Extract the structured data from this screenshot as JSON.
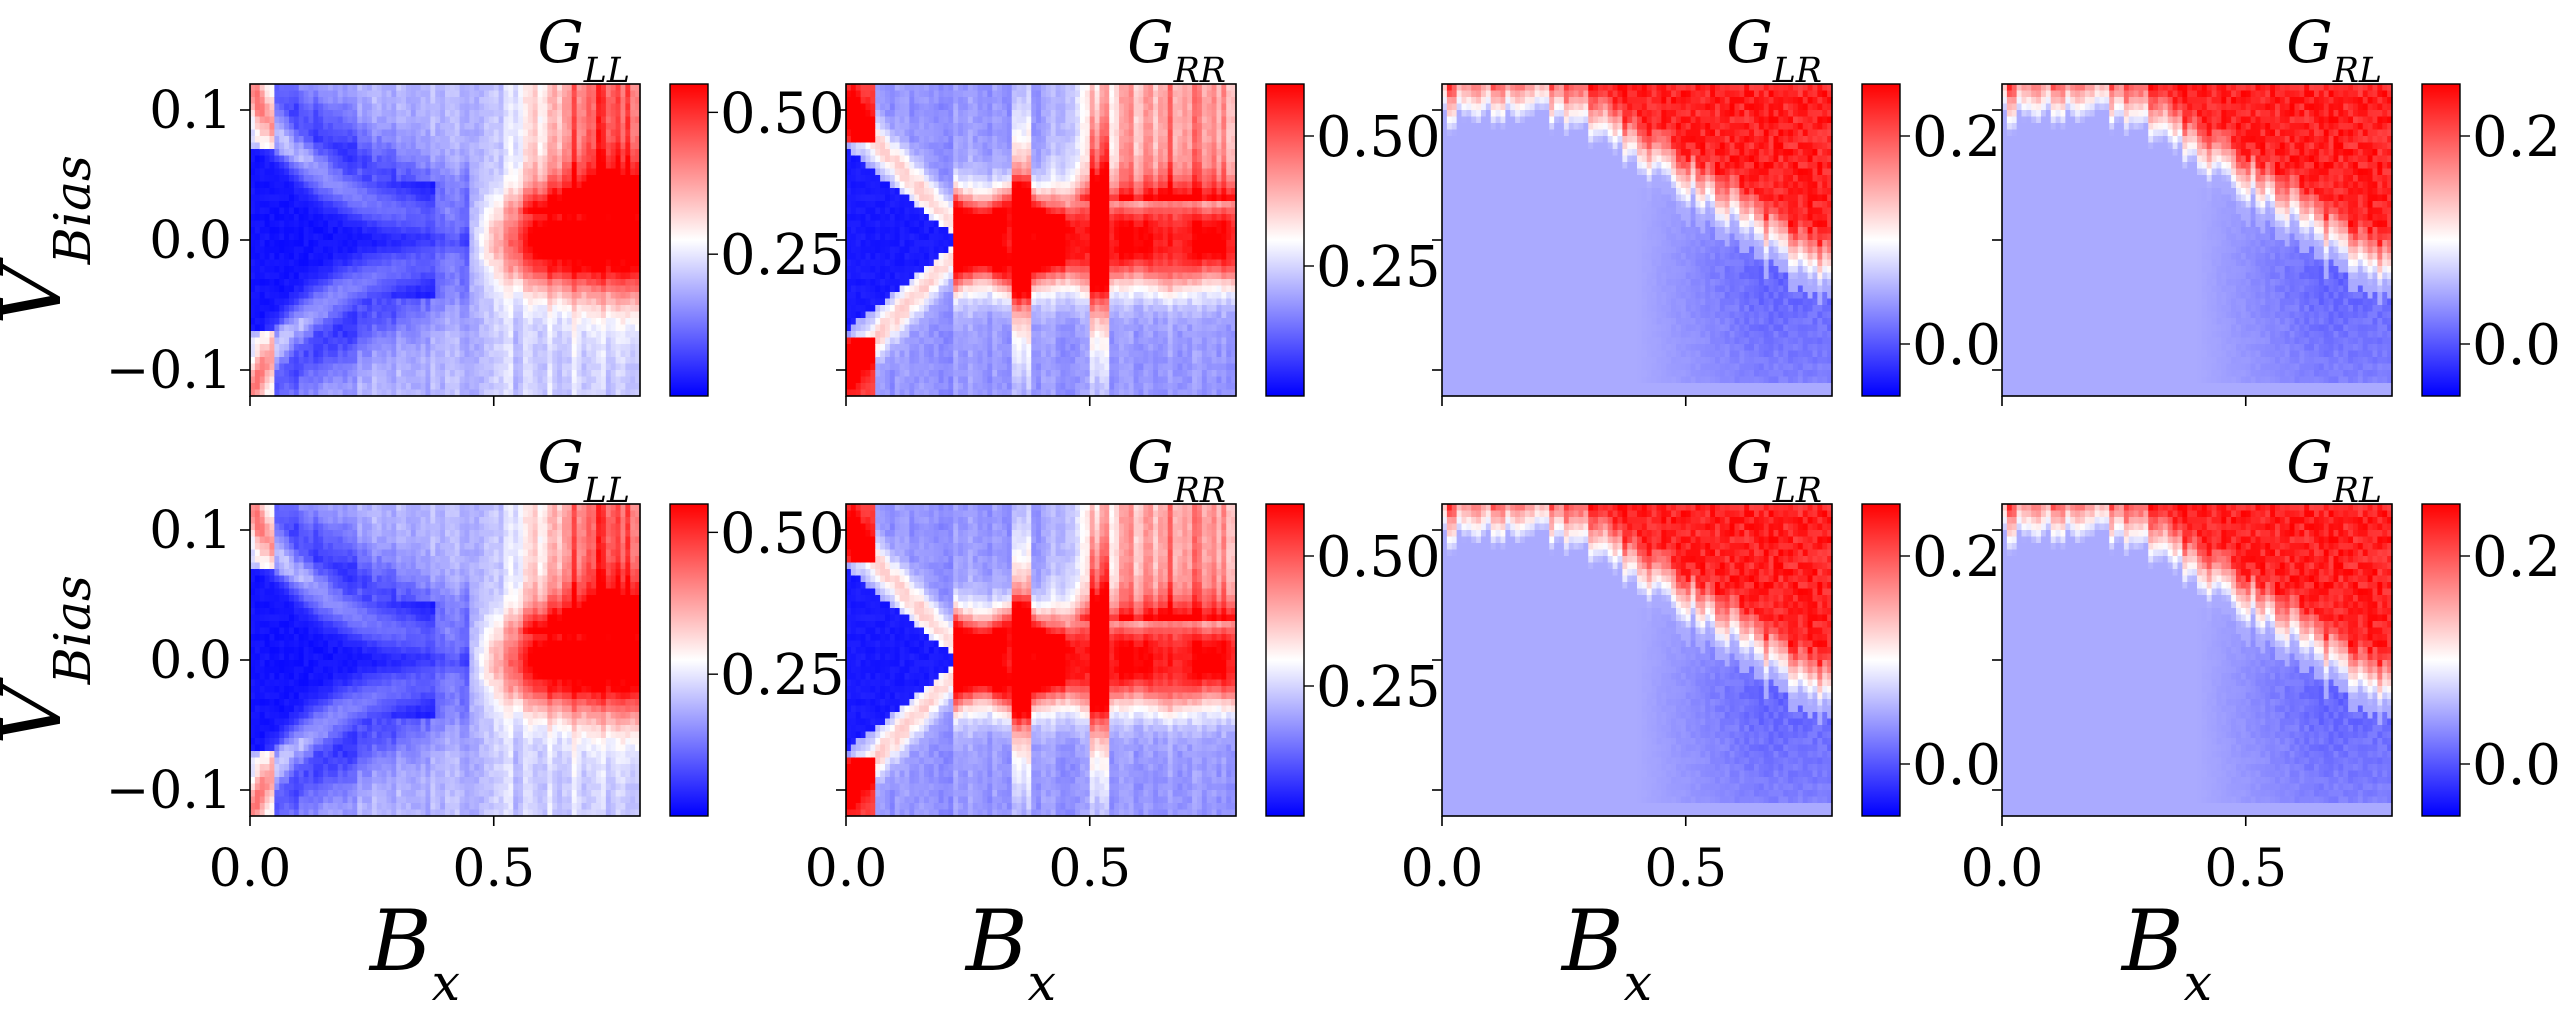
{
  "chart_data": {
    "type": "heatmap",
    "grid_layout": "2 rows x 4 columns",
    "colormap": "bwr",
    "xlabel_main": "B",
    "xlabel_sub": "x",
    "ylabel_main": "V",
    "ylabel_sub": "Bias",
    "x_range": [
      0.0,
      0.8
    ],
    "y_range": [
      -0.12,
      0.12
    ],
    "x_ticks": [
      "0.0",
      "0.5"
    ],
    "y_ticks": [
      "0.1",
      "0.0",
      "−0.1"
    ],
    "x_tick_values": [
      0.0,
      0.5
    ],
    "y_tick_values": [
      0.1,
      0.0,
      -0.1
    ],
    "panels": [
      {
        "row": 0,
        "col": 0,
        "title_main": "G",
        "title_sub": "LL",
        "pattern": "LL",
        "colorbar": {
          "min": 0.0,
          "max": 0.55,
          "ticks": [
            "0.50",
            "0.25"
          ],
          "tick_values": [
            0.5,
            0.25
          ]
        }
      },
      {
        "row": 0,
        "col": 1,
        "title_main": "G",
        "title_sub": "RR",
        "pattern": "RR",
        "colorbar": {
          "min": 0.0,
          "max": 0.6,
          "ticks": [
            "0.50",
            "0.25"
          ],
          "tick_values": [
            0.5,
            0.25
          ]
        }
      },
      {
        "row": 0,
        "col": 2,
        "title_main": "G",
        "title_sub": "LR",
        "pattern": "LR",
        "colorbar": {
          "min": -0.05,
          "max": 0.25,
          "ticks": [
            "0.2",
            "0.0"
          ],
          "tick_values": [
            0.2,
            0.0
          ]
        }
      },
      {
        "row": 0,
        "col": 3,
        "title_main": "G",
        "title_sub": "RL",
        "pattern": "LR",
        "colorbar": {
          "min": -0.05,
          "max": 0.25,
          "ticks": [
            "0.2",
            "0.0"
          ],
          "tick_values": [
            0.2,
            0.0
          ]
        }
      },
      {
        "row": 1,
        "col": 0,
        "title_main": "G",
        "title_sub": "LL",
        "pattern": "LL",
        "colorbar": {
          "min": 0.0,
          "max": 0.55,
          "ticks": [
            "0.50",
            "0.25"
          ],
          "tick_values": [
            0.5,
            0.25
          ]
        }
      },
      {
        "row": 1,
        "col": 1,
        "title_main": "G",
        "title_sub": "RR",
        "pattern": "RR",
        "colorbar": {
          "min": 0.0,
          "max": 0.6,
          "ticks": [
            "0.50",
            "0.25"
          ],
          "tick_values": [
            0.5,
            0.25
          ]
        }
      },
      {
        "row": 1,
        "col": 2,
        "title_main": "G",
        "title_sub": "LR",
        "pattern": "LR",
        "colorbar": {
          "min": -0.05,
          "max": 0.25,
          "ticks": [
            "0.2",
            "0.0"
          ],
          "tick_values": [
            0.2,
            0.0
          ]
        }
      },
      {
        "row": 1,
        "col": 3,
        "title_main": "G",
        "title_sub": "RL",
        "pattern": "LR",
        "colorbar": {
          "min": -0.05,
          "max": 0.25,
          "ticks": [
            "0.2",
            "0.0"
          ],
          "tick_values": [
            0.2,
            0.0
          ]
        }
      }
    ]
  }
}
